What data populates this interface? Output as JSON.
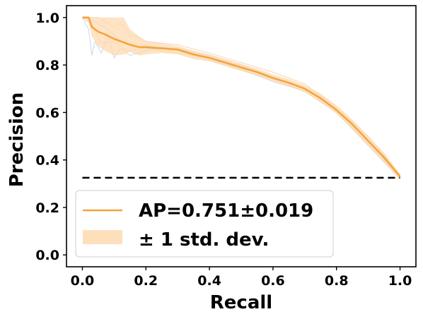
{
  "chart_data": {
    "type": "line",
    "xlabel": "Recall",
    "ylabel": "Precision",
    "xlim": [
      -0.05,
      1.05
    ],
    "ylim": [
      -0.05,
      1.05
    ],
    "xticks": [
      0.0,
      0.2,
      0.4,
      0.6,
      0.8,
      1.0
    ],
    "yticks": [
      0.0,
      0.2,
      0.4,
      0.6,
      0.8,
      1.0
    ],
    "xtick_labels": [
      "0.0",
      "0.2",
      "0.4",
      "0.6",
      "0.8",
      "1.0"
    ],
    "ytick_labels": [
      "0.0",
      "0.2",
      "0.4",
      "0.6",
      "0.8",
      "1.0"
    ],
    "grid": false,
    "legend_position": "lower-left",
    "legend": [
      {
        "label": "AP=0.751±0.019",
        "kind": "line",
        "color": "#f4a33a"
      },
      {
        "label": "± 1 std. dev.",
        "kind": "band",
        "color": "#fdd9b0"
      }
    ],
    "baseline": {
      "y": 0.325,
      "x": [
        0.0,
        1.0
      ],
      "style": "dashed",
      "color": "#000000"
    },
    "series": [
      {
        "label": "AP=0.751±0.019",
        "color": "#f4a33a",
        "x": [
          0.0,
          0.02,
          0.03,
          0.05,
          0.07,
          0.1,
          0.13,
          0.15,
          0.18,
          0.2,
          0.25,
          0.3,
          0.35,
          0.4,
          0.45,
          0.5,
          0.55,
          0.6,
          0.65,
          0.7,
          0.75,
          0.8,
          0.85,
          0.9,
          0.95,
          1.0
        ],
        "y": [
          1.0,
          1.0,
          0.96,
          0.94,
          0.93,
          0.91,
          0.895,
          0.885,
          0.875,
          0.875,
          0.87,
          0.865,
          0.845,
          0.83,
          0.81,
          0.79,
          0.77,
          0.745,
          0.725,
          0.7,
          0.66,
          0.61,
          0.55,
          0.48,
          0.41,
          0.33
        ]
      }
    ],
    "band": {
      "label": "± 1 std. dev.",
      "color": "#fdd9b0",
      "x": [
        0.0,
        0.02,
        0.03,
        0.05,
        0.07,
        0.1,
        0.13,
        0.15,
        0.18,
        0.2,
        0.25,
        0.3,
        0.35,
        0.4,
        0.45,
        0.5,
        0.55,
        0.6,
        0.65,
        0.7,
        0.75,
        0.8,
        0.85,
        0.9,
        0.95,
        1.0
      ],
      "upper": [
        1.0,
        1.0,
        1.0,
        1.0,
        1.0,
        1.0,
        1.0,
        0.95,
        0.92,
        0.9,
        0.89,
        0.88,
        0.86,
        0.845,
        0.825,
        0.805,
        0.785,
        0.76,
        0.74,
        0.715,
        0.68,
        0.63,
        0.57,
        0.5,
        0.43,
        0.34
      ],
      "lower": [
        1.0,
        0.98,
        0.92,
        0.88,
        0.86,
        0.84,
        0.845,
        0.855,
        0.84,
        0.845,
        0.85,
        0.845,
        0.825,
        0.815,
        0.795,
        0.775,
        0.755,
        0.73,
        0.71,
        0.685,
        0.645,
        0.595,
        0.53,
        0.46,
        0.39,
        0.32
      ]
    },
    "faint_runs": [
      {
        "color": "#b8d0e8",
        "x": [
          0.0,
          0.02,
          0.03,
          0.04,
          0.06,
          0.08,
          0.1,
          0.12,
          0.15,
          0.2,
          0.25,
          0.3,
          0.35,
          0.4,
          0.45,
          0.5,
          0.6,
          0.7,
          0.8,
          0.9,
          1.0
        ],
        "y": [
          1.0,
          0.95,
          0.84,
          0.9,
          0.85,
          0.93,
          0.83,
          0.87,
          0.84,
          0.86,
          0.87,
          0.86,
          0.84,
          0.82,
          0.8,
          0.78,
          0.73,
          0.69,
          0.6,
          0.47,
          0.33
        ]
      },
      {
        "color": "#f6c99a",
        "x": [
          0.0,
          0.05,
          0.1,
          0.12,
          0.15,
          0.2,
          0.3,
          0.4,
          0.5,
          0.6,
          0.7,
          0.8,
          0.9,
          1.0
        ],
        "y": [
          1.0,
          1.0,
          0.96,
          0.98,
          0.93,
          0.9,
          0.885,
          0.85,
          0.81,
          0.77,
          0.72,
          0.62,
          0.5,
          0.34
        ]
      },
      {
        "color": "#f6c99a",
        "x": [
          0.0,
          0.03,
          0.06,
          0.1,
          0.14,
          0.2,
          0.3,
          0.4,
          0.5,
          0.6,
          0.7,
          0.8,
          0.9,
          1.0
        ],
        "y": [
          1.0,
          0.97,
          0.89,
          0.9,
          0.86,
          0.87,
          0.85,
          0.83,
          0.78,
          0.74,
          0.69,
          0.6,
          0.46,
          0.32
        ]
      },
      {
        "color": "#b8d0e8",
        "x": [
          0.0,
          0.03,
          0.08,
          0.12,
          0.2,
          0.3,
          0.4,
          0.5,
          0.6,
          0.7,
          0.8,
          0.9,
          1.0
        ],
        "y": [
          1.0,
          0.99,
          0.95,
          0.9,
          0.88,
          0.87,
          0.84,
          0.8,
          0.75,
          0.7,
          0.61,
          0.48,
          0.33
        ]
      }
    ]
  }
}
